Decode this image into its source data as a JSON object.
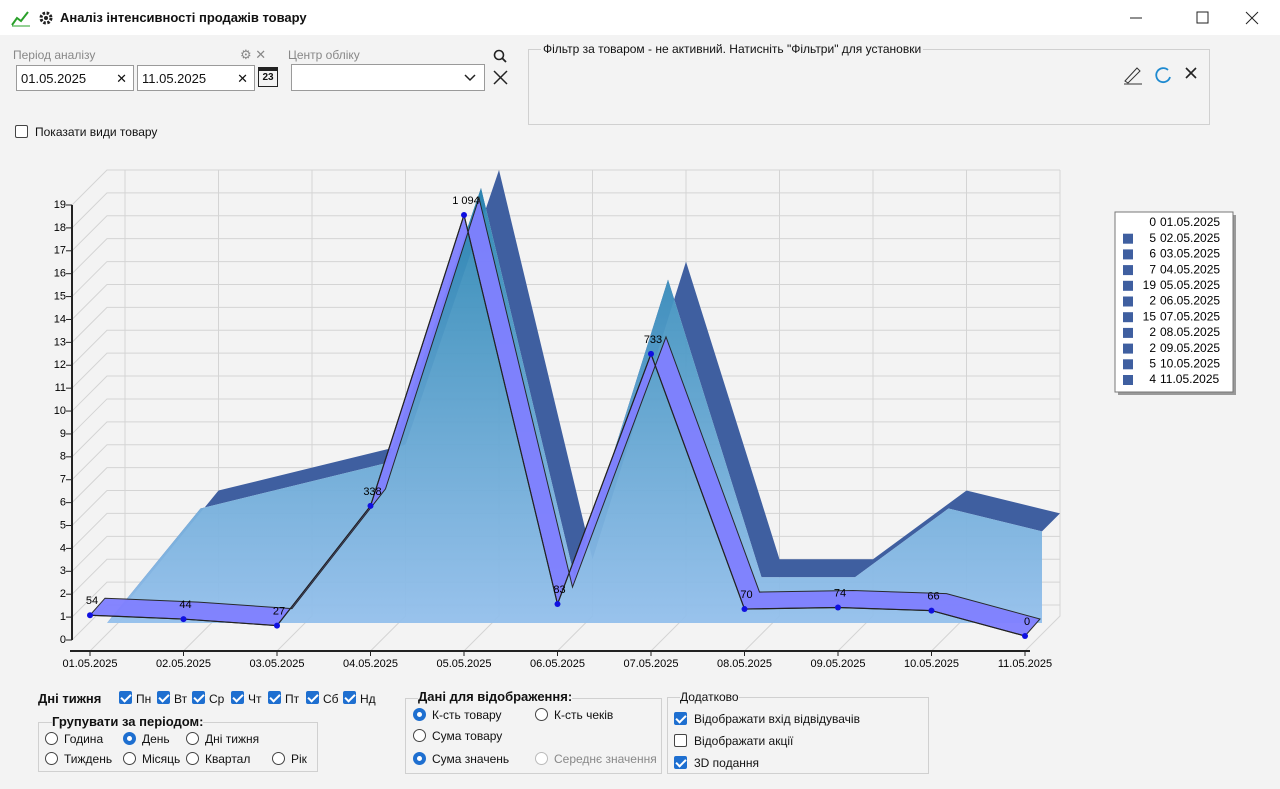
{
  "window": {
    "title": "Аналіз інтенсивності продажів товару"
  },
  "filters": {
    "period_label": "Період аналізу",
    "date_from": "01.05.2025",
    "date_to": "11.05.2025",
    "calendar_day": "23",
    "center_label": "Центр обліку",
    "product_filter": "Фільтр за товаром - не активний. Натисніть \"Фільтри\" для установки",
    "show_types": "Показати види товару"
  },
  "chart_data": {
    "type": "area",
    "categories": [
      "01.05.2025",
      "02.05.2025",
      "03.05.2025",
      "04.05.2025",
      "05.05.2025",
      "06.05.2025",
      "07.05.2025",
      "08.05.2025",
      "09.05.2025",
      "10.05.2025",
      "11.05.2025"
    ],
    "ylim": [
      0,
      19
    ],
    "yticks": [
      0,
      1,
      2,
      3,
      4,
      5,
      6,
      7,
      8,
      9,
      10,
      11,
      12,
      13,
      14,
      15,
      16,
      17,
      18,
      19
    ],
    "grid": true,
    "legend": "right",
    "series": [
      {
        "color": "#3f5fa0",
        "values": [
          0,
          5,
          6,
          7,
          19,
          2,
          15,
          2,
          2,
          5,
          4
        ]
      },
      {
        "color": "#8080ff",
        "values": [
          54,
          44,
          27,
          338,
          1094,
          83,
          733,
          70,
          74,
          66,
          0
        ],
        "value_labels": [
          "54",
          "44",
          "27",
          "338",
          "1 094",
          "83",
          "733",
          "70",
          "74",
          "66",
          "0"
        ]
      }
    ]
  },
  "controls": {
    "weekdays": {
      "label": "Дні тижня",
      "days": [
        "Пн",
        "Вт",
        "Ср",
        "Чт",
        "Пт",
        "Сб",
        "Нд"
      ]
    },
    "grouping": {
      "label": "Групувати за періодом:",
      "options": [
        "Година",
        "День",
        "Дні тижня",
        "Тиждень",
        "Місяць",
        "Квартал",
        "Рік"
      ]
    },
    "display": {
      "label": "Дані для відображення:",
      "options": [
        "К-сть товару",
        "К-сть чеків",
        "Сума товару",
        "Сума значень",
        "Середнє значення"
      ]
    },
    "extra": {
      "label": "Додатково",
      "options": [
        "Відображати вхід відвідувачів",
        "Відображати акції",
        "3D подання"
      ]
    }
  }
}
